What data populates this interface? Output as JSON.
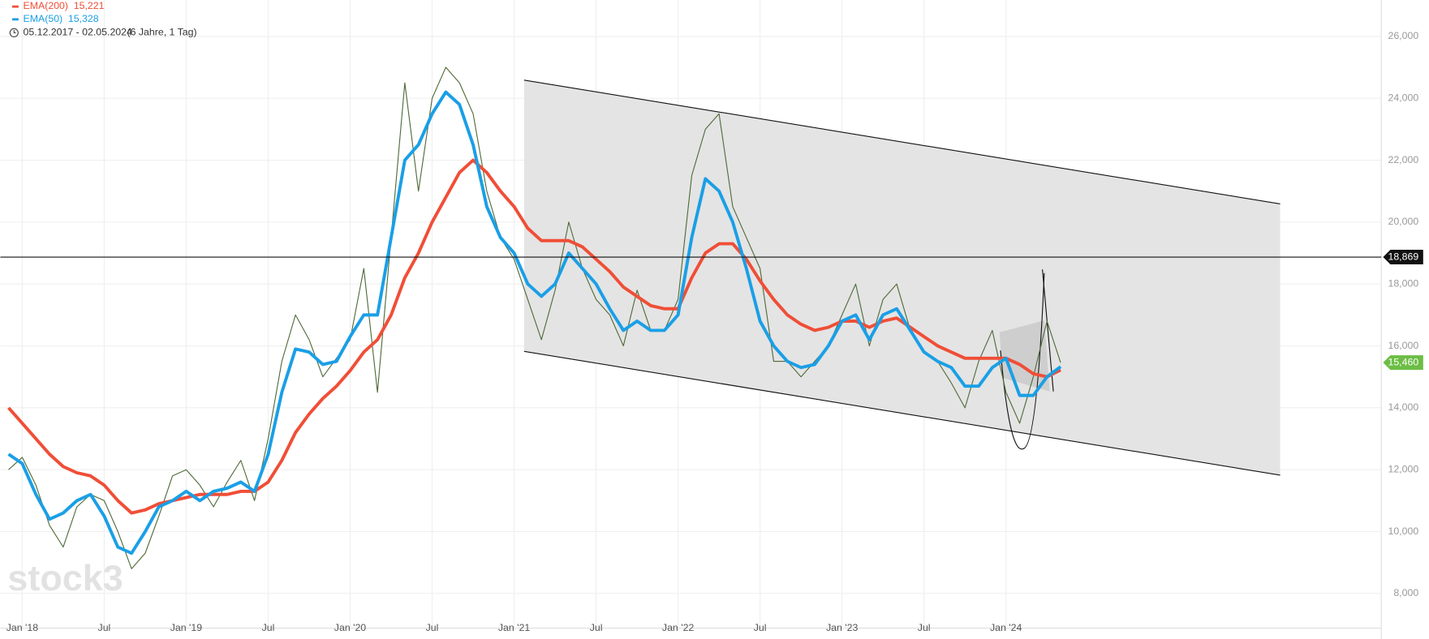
{
  "chart_data": {
    "type": "line",
    "watermark": "stock3",
    "range": "05.12.2017 - 02.05.2024",
    "period": "(6 Jahre, 1 Tag)",
    "categories": [
      null,
      "Jan '18",
      null,
      null,
      null,
      null,
      null,
      "Jul",
      null,
      null,
      null,
      null,
      null,
      "Jan '19",
      null,
      null,
      null,
      null,
      null,
      "Jul",
      null,
      null,
      null,
      null,
      null,
      "Jan '20",
      null,
      null,
      null,
      null,
      null,
      "Jul",
      null,
      null,
      null,
      null,
      null,
      "Jan '21",
      null,
      null,
      null,
      null,
      null,
      "Jul",
      null,
      null,
      null,
      null,
      null,
      "Jan '22",
      null,
      null,
      null,
      null,
      null,
      "Jul",
      null,
      null,
      null,
      null,
      null,
      "Jan '23",
      null,
      null,
      null,
      null,
      null,
      "Jul",
      null,
      null,
      null,
      null,
      null,
      "Jan '24",
      null,
      null,
      null,
      null
    ],
    "values": [
      12000,
      12400,
      11500,
      10200,
      9500,
      10800,
      11200,
      11000,
      10000,
      8800,
      9300,
      10500,
      11800,
      12000,
      11500,
      10800,
      11600,
      12300,
      11000,
      13000,
      15500,
      17000,
      16200,
      15000,
      15600,
      16200,
      18500,
      14500,
      19500,
      24500,
      21000,
      24000,
      25000,
      24500,
      23500,
      21000,
      19500,
      18800,
      17500,
      16200,
      17800,
      20000,
      18500,
      17500,
      17000,
      16000,
      17800,
      16500,
      16500,
      17500,
      21500,
      23000,
      23500,
      20500,
      19500,
      18500,
      15500,
      15500,
      15000,
      15500,
      16000,
      17000,
      18000,
      16000,
      17500,
      18000,
      16500,
      15800,
      15500,
      14800,
      14000,
      15500,
      16500,
      14500,
      13500,
      15000,
      16800,
      15460
    ],
    "color": "#4f6b3a",
    "series": [
      {
        "name": "EMA(200)",
        "color": "#f04e37",
        "last": {
          "value": 15221,
          "label": "15,221"
        },
        "values": [
          14000,
          13500,
          13000,
          12500,
          12100,
          11900,
          11800,
          11500,
          11000,
          10600,
          10700,
          10900,
          11000,
          11100,
          11200,
          11200,
          11200,
          11300,
          11300,
          11600,
          12300,
          13200,
          13800,
          14300,
          14700,
          15200,
          15800,
          16200,
          17000,
          18200,
          19000,
          20000,
          20800,
          21600,
          22000,
          21600,
          21000,
          20500,
          19800,
          19400,
          19400,
          19400,
          19200,
          18800,
          18400,
          17900,
          17600,
          17300,
          17200,
          17200,
          18200,
          19000,
          19300,
          19300,
          18800,
          18100,
          17500,
          17000,
          16700,
          16500,
          16600,
          16800,
          16800,
          16600,
          16800,
          16900,
          16600,
          16300,
          16000,
          15800,
          15600,
          15600,
          15600,
          15600,
          15400,
          15100,
          15000,
          15221
        ]
      },
      {
        "name": "EMA(50)",
        "color": "#1a9fe6",
        "last": {
          "value": 15328,
          "label": "15,328"
        },
        "values": [
          12500,
          12200,
          11200,
          10400,
          10600,
          11000,
          11200,
          10500,
          9500,
          9300,
          10000,
          10800,
          11000,
          11300,
          11000,
          11300,
          11400,
          11600,
          11300,
          12500,
          14500,
          15900,
          15800,
          15400,
          15500,
          16300,
          17000,
          17000,
          19500,
          22000,
          22500,
          23500,
          24200,
          23800,
          22500,
          20500,
          19500,
          19000,
          18000,
          17600,
          18000,
          19000,
          18500,
          18000,
          17200,
          16500,
          16800,
          16500,
          16500,
          17000,
          19500,
          21400,
          21000,
          20000,
          18500,
          16800,
          16000,
          15500,
          15300,
          15400,
          16000,
          16800,
          17000,
          16200,
          17000,
          17200,
          16500,
          15800,
          15500,
          15300,
          14700,
          14700,
          15300,
          15600,
          14400,
          14400,
          15000,
          15328
        ]
      }
    ],
    "ylim": [
      6882,
      27176
    ],
    "yticks": [
      {
        "value": 8000,
        "label": "8,000"
      },
      {
        "value": 10000,
        "label": "10,000"
      },
      {
        "value": 12000,
        "label": "12,000"
      },
      {
        "value": 14000,
        "label": "14,000"
      },
      {
        "value": 16000,
        "label": "16,000"
      },
      {
        "value": 18000,
        "label": "18,000"
      },
      {
        "value": 20000,
        "label": "20,000"
      },
      {
        "value": 22000,
        "label": "22,000"
      },
      {
        "value": 24000,
        "label": "24,000"
      },
      {
        "value": 26000,
        "label": "26,000"
      }
    ],
    "markers": [
      {
        "value": 18869,
        "label": "18,869",
        "color": "#111111"
      },
      {
        "value": 15460,
        "label": "15,460",
        "color": "#6cbd45"
      }
    ],
    "grid": true
  }
}
